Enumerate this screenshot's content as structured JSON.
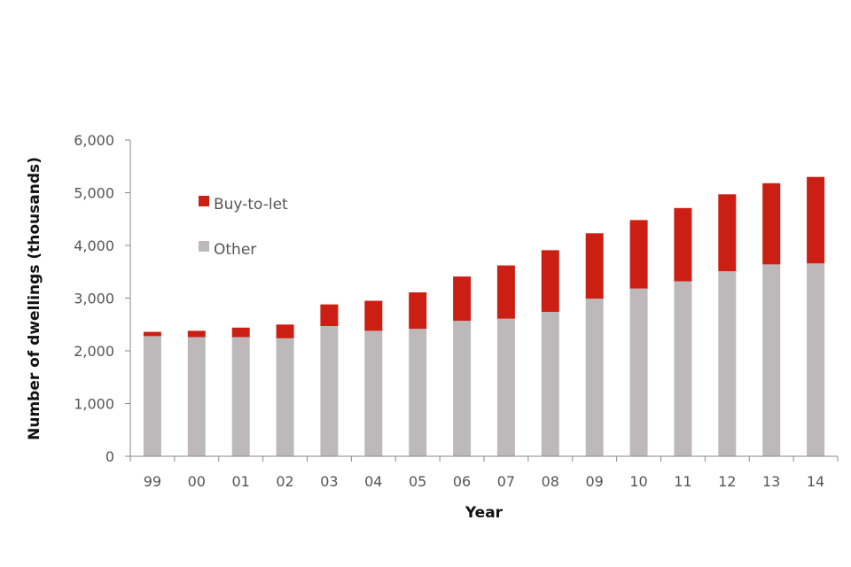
{
  "chart_data": {
    "type": "bar",
    "stacked": true,
    "categories": [
      "99",
      "00",
      "01",
      "02",
      "03",
      "04",
      "05",
      "06",
      "07",
      "08",
      "09",
      "10",
      "11",
      "12",
      "13",
      "14"
    ],
    "series": [
      {
        "name": "Other",
        "color": "#bdb9ba",
        "values": [
          2280,
          2260,
          2260,
          2240,
          2470,
          2380,
          2420,
          2570,
          2610,
          2740,
          2990,
          3180,
          3320,
          3510,
          3640,
          3660
        ]
      },
      {
        "name": "Buy-to-let",
        "color": "#cc1f14",
        "values": [
          80,
          120,
          180,
          260,
          410,
          570,
          690,
          840,
          1010,
          1170,
          1240,
          1300,
          1390,
          1460,
          1540,
          1640
        ]
      }
    ],
    "xlabel": "Year",
    "ylabel": "Number of dwellings (thousands)",
    "ylim": [
      0,
      6000
    ],
    "yticks": [
      "0",
      "1,000",
      "2,000",
      "3,000",
      "4,000",
      "5,000",
      "6,000"
    ],
    "grid": false,
    "legend_position": "top-left"
  }
}
